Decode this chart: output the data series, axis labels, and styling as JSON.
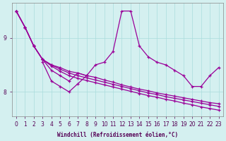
{
  "xlabel": "Windchill (Refroidissement éolien,°C)",
  "bg_color": "#d4f0f0",
  "line_color": "#990099",
  "grid_color": "#aadddd",
  "hours": [
    0,
    1,
    2,
    3,
    4,
    5,
    6,
    7,
    8,
    9,
    10,
    11,
    12,
    13,
    14,
    15,
    16,
    17,
    18,
    19,
    20,
    21,
    22,
    23
  ],
  "yticks": [
    8,
    9
  ],
  "ylim": [
    7.55,
    9.65
  ],
  "xlim": [
    -0.5,
    23.5
  ],
  "y_zigzag": [
    9.5,
    9.2,
    8.85,
    8.6,
    8.4,
    8.3,
    8.2,
    8.35,
    8.3,
    8.5,
    8.55,
    8.75,
    9.5,
    9.5,
    8.85,
    8.65,
    8.55,
    8.5,
    8.4,
    8.3,
    8.1,
    8.1,
    8.3,
    8.45
  ],
  "y_line1": [
    9.5,
    9.2,
    8.85,
    8.6,
    8.5,
    8.45,
    8.38,
    8.35,
    8.3,
    8.27,
    8.22,
    8.18,
    8.13,
    8.09,
    8.05,
    8.02,
    7.98,
    7.95,
    7.92,
    7.89,
    7.86,
    7.83,
    7.8,
    7.78
  ],
  "y_line2": [
    9.5,
    9.2,
    8.85,
    8.6,
    8.5,
    8.42,
    8.35,
    8.3,
    8.26,
    8.22,
    8.18,
    8.14,
    8.1,
    8.06,
    8.02,
    7.98,
    7.95,
    7.91,
    7.88,
    7.85,
    7.82,
    7.79,
    7.76,
    7.73
  ],
  "y_line3": [
    9.5,
    9.2,
    8.85,
    8.6,
    8.48,
    8.38,
    8.3,
    8.25,
    8.21,
    8.17,
    8.13,
    8.09,
    8.05,
    8.01,
    7.97,
    7.93,
    7.9,
    7.86,
    7.83,
    7.79,
    7.76,
    7.72,
    7.69,
    7.66
  ],
  "y_dip_x": [
    3,
    4,
    5,
    6,
    7,
    8
  ],
  "y_dip_y": [
    8.55,
    8.2,
    8.1,
    8.0,
    8.15,
    8.3
  ]
}
